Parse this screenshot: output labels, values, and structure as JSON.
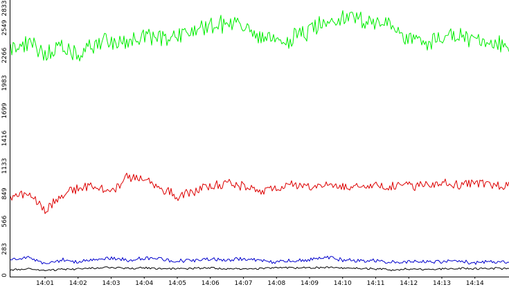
{
  "chart_data": {
    "type": "line",
    "title": "",
    "xlabel": "",
    "ylabel": "",
    "grid": false,
    "ylim": [
      0,
      2833
    ],
    "xlim_minutes": [
      0.0,
      15.1
    ],
    "yticks": [
      "0",
      "283",
      "566",
      "849",
      "1133",
      "1416",
      "1699",
      "1983",
      "2266",
      "2549",
      "2833"
    ],
    "xticks": [
      "14:01",
      "14:02",
      "14:03",
      "14:04",
      "14:05",
      "14:06",
      "14:07",
      "14:08",
      "14:09",
      "14:10",
      "14:11",
      "14:12",
      "14:13",
      "14:14"
    ],
    "series": [
      {
        "color": "#00ee00",
        "x": [
          "14:00",
          "14:00:30",
          "14:01",
          "14:01:30",
          "14:02",
          "14:02:30",
          "14:03",
          "14:03:30",
          "14:04",
          "14:04:30",
          "14:05",
          "14:05:30",
          "14:06",
          "14:06:30",
          "14:07",
          "14:07:30",
          "14:08",
          "14:08:30",
          "14:09",
          "14:09:30",
          "14:10",
          "14:10:30",
          "14:11",
          "14:11:30",
          "14:12",
          "14:12:30",
          "14:13",
          "14:13:30",
          "14:14",
          "14:14:30",
          "14:15"
        ],
        "values": [
          2340,
          2380,
          2300,
          2330,
          2250,
          2390,
          2420,
          2380,
          2460,
          2440,
          2480,
          2520,
          2580,
          2600,
          2570,
          2430,
          2400,
          2450,
          2510,
          2640,
          2660,
          2640,
          2620,
          2540,
          2450,
          2380,
          2460,
          2470,
          2420,
          2350,
          2380
        ]
      },
      {
        "color": "#dd0000",
        "x": [
          "14:00",
          "14:00:30",
          "14:01",
          "14:01:30",
          "14:02",
          "14:02:30",
          "14:03",
          "14:03:30",
          "14:04",
          "14:04:30",
          "14:05",
          "14:05:30",
          "14:06",
          "14:06:30",
          "14:07",
          "14:07:30",
          "14:08",
          "14:08:30",
          "14:09",
          "14:09:30",
          "14:10",
          "14:10:30",
          "14:11",
          "14:11:30",
          "14:12",
          "14:12:30",
          "14:13",
          "14:13:30",
          "14:14",
          "14:14:30",
          "14:15"
        ],
        "values": [
          820,
          860,
          680,
          840,
          900,
          940,
          860,
          1020,
          1010,
          900,
          820,
          880,
          920,
          960,
          920,
          890,
          910,
          930,
          920,
          940,
          930,
          920,
          940,
          930,
          930,
          950,
          960,
          940,
          950,
          940,
          930
        ]
      },
      {
        "color": "#0000cc",
        "x": [
          "14:00",
          "14:00:30",
          "14:01",
          "14:01:30",
          "14:02",
          "14:02:30",
          "14:03",
          "14:03:30",
          "14:04",
          "14:04:30",
          "14:05",
          "14:05:30",
          "14:06",
          "14:06:30",
          "14:07",
          "14:07:30",
          "14:08",
          "14:08:30",
          "14:09",
          "14:09:30",
          "14:10",
          "14:10:30",
          "14:11",
          "14:11:30",
          "14:12",
          "14:12:30",
          "14:13",
          "14:13:30",
          "14:14",
          "14:14:30",
          "14:15"
        ],
        "values": [
          170,
          200,
          140,
          170,
          150,
          180,
          190,
          170,
          190,
          180,
          160,
          170,
          180,
          170,
          180,
          160,
          150,
          160,
          170,
          200,
          170,
          160,
          170,
          150,
          160,
          150,
          150,
          160,
          140,
          150,
          150
        ]
      },
      {
        "color": "#000000",
        "x": [
          "14:00",
          "14:00:30",
          "14:01",
          "14:01:30",
          "14:02",
          "14:02:30",
          "14:03",
          "14:03:30",
          "14:04",
          "14:04:30",
          "14:05",
          "14:05:30",
          "14:06",
          "14:06:30",
          "14:07",
          "14:07:30",
          "14:08",
          "14:08:30",
          "14:09",
          "14:09:30",
          "14:10",
          "14:10:30",
          "14:11",
          "14:11:30",
          "14:12",
          "14:12:30",
          "14:13",
          "14:13:30",
          "14:14",
          "14:14:30",
          "14:15"
        ],
        "values": [
          70,
          80,
          60,
          75,
          80,
          90,
          95,
          85,
          90,
          80,
          80,
          85,
          90,
          80,
          85,
          80,
          95,
          90,
          90,
          95,
          90,
          85,
          80,
          70,
          80,
          75,
          80,
          85,
          80,
          85,
          80
        ]
      }
    ]
  }
}
